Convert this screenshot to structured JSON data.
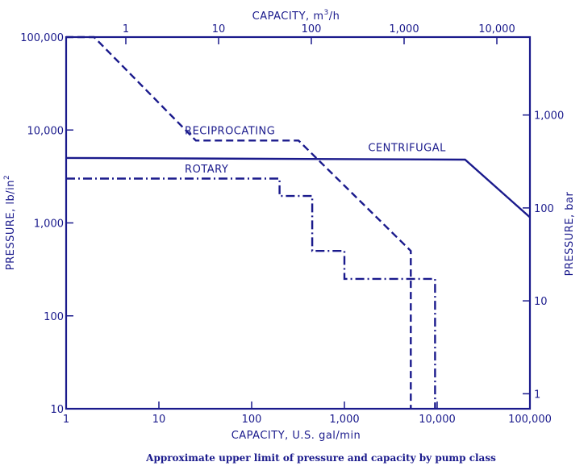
{
  "chart_data": {
    "type": "line",
    "caption": "Approximate upper limit of pressure and capacity by pump class",
    "xlabel_bottom": "CAPACITY, U.S. gal/min",
    "xlabel_top_prefix": "CAPACITY, m",
    "xlabel_top_sup": "3",
    "xlabel_top_suffix": "/h",
    "ylabel_left_prefix": "PRESSURE, lb/in",
    "ylabel_left_sup": "2",
    "ylabel_right": "PRESSURE, bar",
    "x_scale": "log",
    "y_scale": "log",
    "xlim": [
      1,
      100000
    ],
    "ylim": [
      10,
      100000
    ],
    "grid": false,
    "bottom_ticks": [
      {
        "value": 1,
        "label": "1"
      },
      {
        "value": 10,
        "label": "10"
      },
      {
        "value": 100,
        "label": "100"
      },
      {
        "value": 1000,
        "label": "1,000"
      },
      {
        "value": 10000,
        "label": "10,000"
      },
      {
        "value": 100000,
        "label": "100,000"
      }
    ],
    "left_ticks": [
      {
        "value": 10,
        "label": "10"
      },
      {
        "value": 100,
        "label": "100"
      },
      {
        "value": 1000,
        "label": "1,000"
      },
      {
        "value": 10000,
        "label": "10,000"
      },
      {
        "value": 100000,
        "label": "100,000"
      }
    ],
    "top_ticks": [
      {
        "value": 4.4,
        "label": "1"
      },
      {
        "value": 44,
        "label": "10"
      },
      {
        "value": 440,
        "label": "100"
      },
      {
        "value": 4400,
        "label": "1,000"
      },
      {
        "value": 44000,
        "label": "10,000"
      }
    ],
    "right_ticks": [
      {
        "value": 14.5,
        "label": "1"
      },
      {
        "value": 145,
        "label": "10"
      },
      {
        "value": 1450,
        "label": "100"
      },
      {
        "value": 14500,
        "label": "1,000"
      }
    ],
    "series": [
      {
        "name": "RECIPROCATING",
        "style": "dashed",
        "label_at": [
          19,
          9000
        ],
        "points": [
          [
            1,
            100000
          ],
          [
            2,
            100000
          ],
          [
            25,
            7700
          ],
          [
            320,
            7700
          ],
          [
            5200,
            500
          ],
          [
            5200,
            10
          ]
        ]
      },
      {
        "name": "CENTRIFUGAL",
        "style": "solid",
        "label_at": [
          1800,
          5900
        ],
        "points": [
          [
            1,
            5000
          ],
          [
            20000,
            4800
          ],
          [
            100000,
            1150
          ]
        ]
      },
      {
        "name": "ROTARY",
        "style": "dash-dot",
        "label_at": [
          19,
          3500
        ],
        "points": [
          [
            1,
            3000
          ],
          [
            200,
            3000
          ],
          [
            200,
            1950
          ],
          [
            450,
            1950
          ],
          [
            450,
            500
          ],
          [
            1000,
            500
          ],
          [
            1000,
            250
          ],
          [
            9500,
            250
          ],
          [
            9500,
            10
          ]
        ]
      }
    ],
    "colors": {
      "ink": "#1a1a8c"
    }
  }
}
